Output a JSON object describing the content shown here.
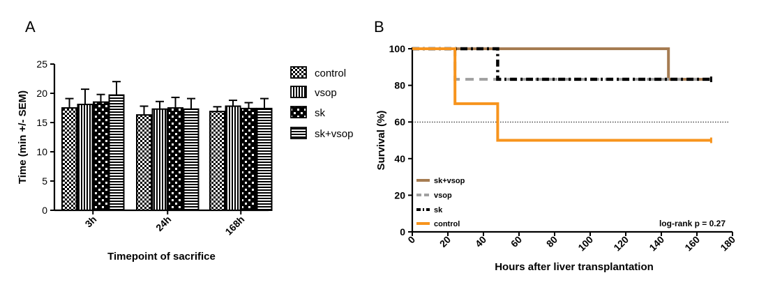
{
  "chart_data": [
    {
      "panel": "A",
      "type": "bar",
      "title": "",
      "xlabel": "Timepoint of sacrifice",
      "ylabel": "Time (min +/- SEM)",
      "ylim": [
        0,
        25
      ],
      "yticks": [
        "0",
        "5",
        "10",
        "15",
        "20",
        "25"
      ],
      "categories": [
        "3h",
        "24h",
        "168h"
      ],
      "series": [
        {
          "name": "control",
          "pattern": "checker-fine",
          "values": [
            17.5,
            16.3,
            16.9
          ],
          "errors": [
            1.6,
            1.5,
            0.8
          ]
        },
        {
          "name": "vsop",
          "pattern": "vertical-lines",
          "values": [
            18.1,
            17.3,
            17.8
          ],
          "errors": [
            2.6,
            1.3,
            1.0
          ]
        },
        {
          "name": "sk",
          "pattern": "checker-bold",
          "values": [
            18.5,
            17.5,
            17.4
          ],
          "errors": [
            1.3,
            1.8,
            1.0
          ]
        },
        {
          "name": "sk+vsop",
          "pattern": "horizontal-lines",
          "values": [
            19.7,
            17.3,
            17.4
          ],
          "errors": [
            2.3,
            1.8,
            1.7
          ]
        }
      ]
    },
    {
      "panel": "B",
      "type": "line",
      "style": "step",
      "title": "",
      "xlabel": "Hours after liver transplantation",
      "ylabel": "Survival (%)",
      "xlim": [
        0,
        180
      ],
      "ylim": [
        0,
        100
      ],
      "xticks": [
        "0",
        "20",
        "40",
        "60",
        "80",
        "100",
        "120",
        "140",
        "160",
        "180"
      ],
      "yticks": [
        "0",
        "20",
        "40",
        "60",
        "80",
        "100"
      ],
      "reference_line": 60,
      "annotation": "log-rank p = 0.27",
      "legend_position": "bottom-left",
      "series": [
        {
          "name": "sk+vsop",
          "color": "#A67C52",
          "dash": "solid",
          "x": [
            0,
            144,
            144,
            168
          ],
          "y": [
            100,
            100,
            83.3,
            83.3
          ]
        },
        {
          "name": "vsop",
          "color": "#A0A0A0",
          "dash": "dashed",
          "x": [
            0,
            24,
            24,
            168
          ],
          "y": [
            100,
            100,
            83.3,
            83.3
          ]
        },
        {
          "name": "sk",
          "color": "#000000",
          "dash": "dashdot",
          "x": [
            0,
            48,
            48,
            168
          ],
          "y": [
            100,
            100,
            83.3,
            83.3
          ]
        },
        {
          "name": "control",
          "color": "#F7941D",
          "dash": "solid",
          "x": [
            0,
            24,
            24,
            48,
            48,
            168
          ],
          "y": [
            100,
            100,
            70,
            70,
            50,
            50
          ]
        }
      ]
    }
  ]
}
